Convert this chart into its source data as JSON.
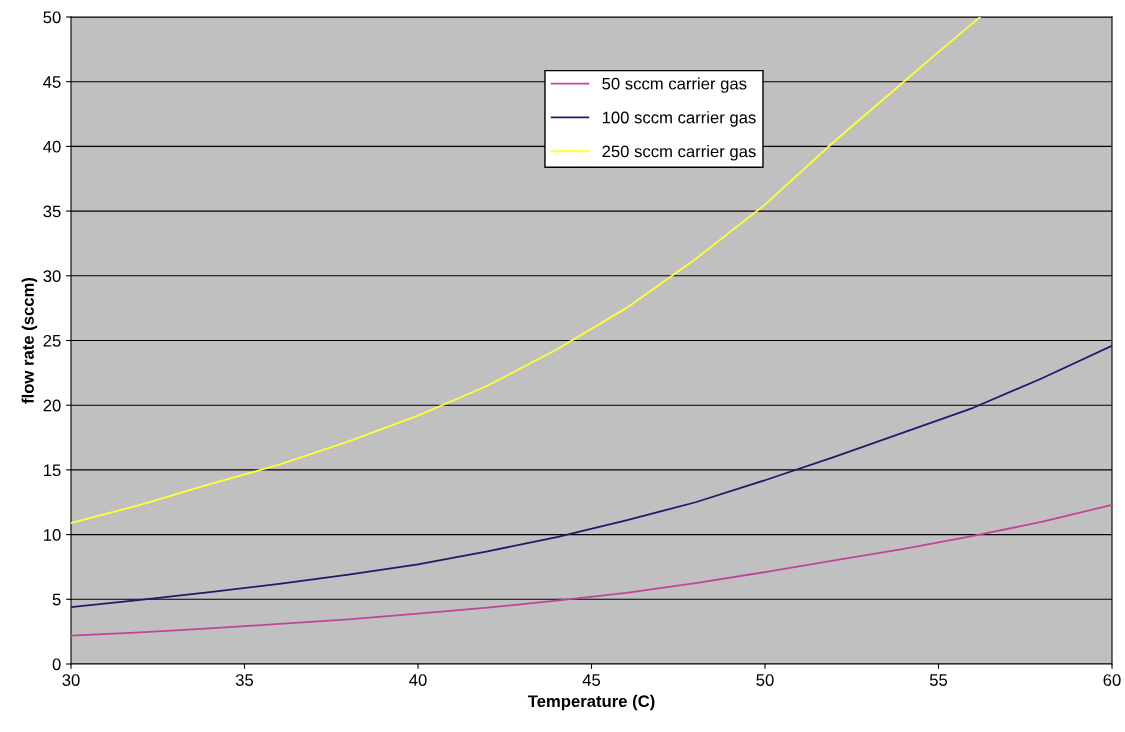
{
  "chart_data": {
    "type": "line",
    "xlabel": "Temperature (C)",
    "ylabel": "flow rate (sccm)",
    "xlim": [
      30,
      60
    ],
    "ylim": [
      0,
      50
    ],
    "xticks": [
      30,
      35,
      40,
      45,
      50,
      55,
      60
    ],
    "yticks": [
      0,
      5,
      10,
      15,
      20,
      25,
      30,
      35,
      40,
      45,
      50
    ],
    "grid": "y",
    "legend": "top",
    "marker": "none",
    "line_style": "solid",
    "series": [
      {
        "name": "50 sccm carrier gas",
        "color": "#c0449a",
        "x": [
          30,
          32,
          34,
          36,
          38,
          40,
          42,
          44,
          46,
          48,
          50,
          52,
          54,
          56,
          58,
          60
        ],
        "values": [
          2.2,
          2.45,
          2.75,
          3.1,
          3.45,
          3.9,
          4.35,
          4.9,
          5.5,
          6.25,
          7.1,
          8.0,
          8.9,
          9.9,
          11.0,
          12.3
        ]
      },
      {
        "name": "100 sccm carrier gas",
        "color": "#1c1c6a",
        "x": [
          30,
          32,
          34,
          36,
          38,
          40,
          42,
          44,
          46,
          48,
          50,
          52,
          54,
          56,
          58,
          60
        ],
        "values": [
          4.4,
          4.95,
          5.55,
          6.2,
          6.9,
          7.7,
          8.7,
          9.8,
          11.1,
          12.5,
          14.2,
          16.0,
          17.9,
          19.8,
          22.1,
          24.6
        ]
      },
      {
        "name": "250 sccm carrier gas",
        "color": "#ffff33",
        "x": [
          30,
          32,
          34,
          36,
          38,
          40,
          42,
          44,
          46,
          48,
          50,
          52,
          54,
          55,
          56.2
        ],
        "values": [
          10.9,
          12.3,
          13.9,
          15.4,
          17.2,
          19.2,
          21.5,
          24.3,
          27.5,
          31.3,
          35.5,
          40.4,
          45.0,
          47.3,
          50.0
        ]
      }
    ]
  }
}
